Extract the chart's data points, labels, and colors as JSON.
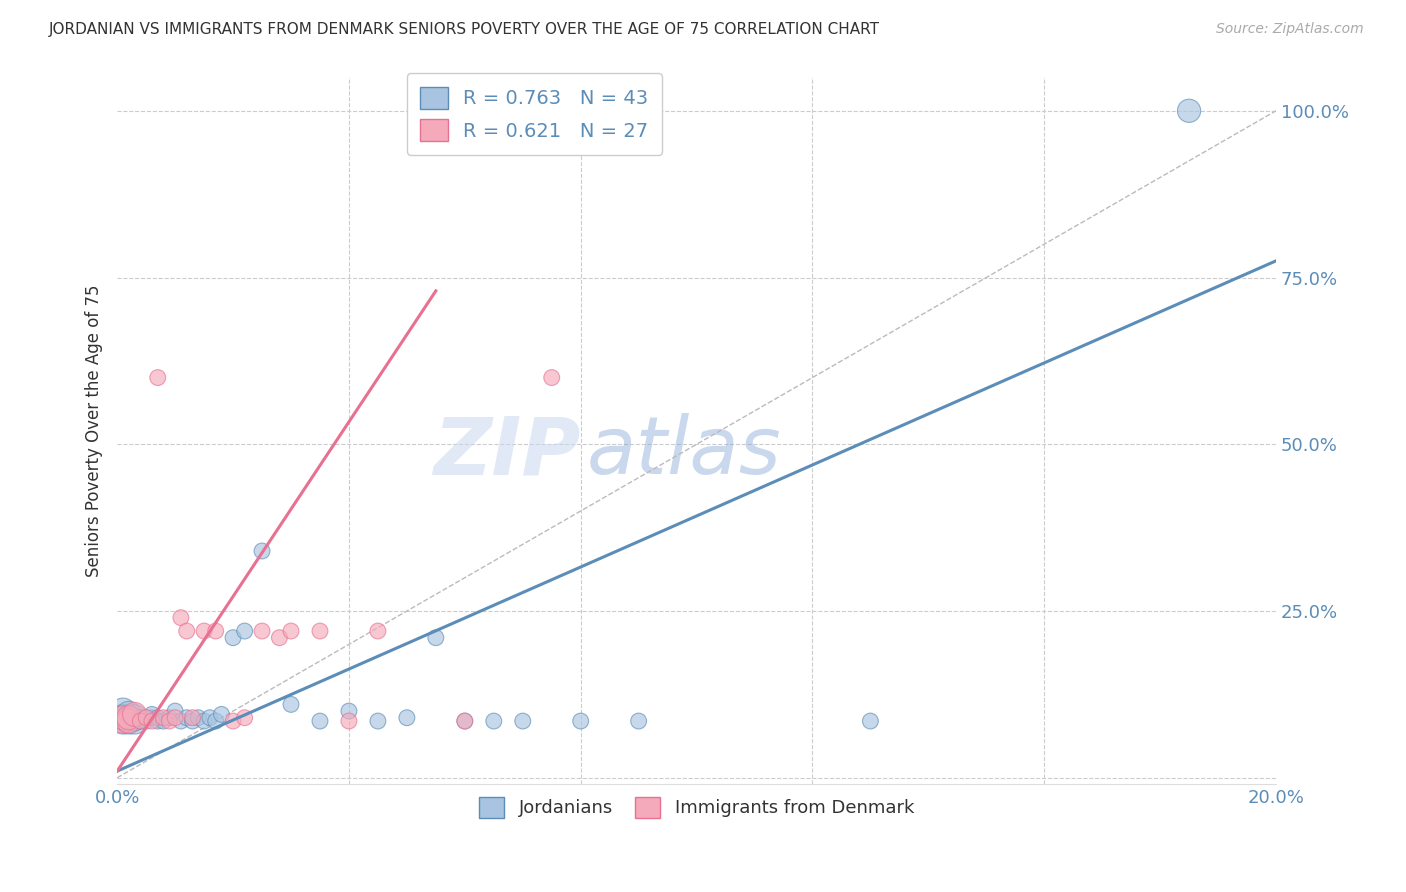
{
  "title": "JORDANIAN VS IMMIGRANTS FROM DENMARK SENIORS POVERTY OVER THE AGE OF 75 CORRELATION CHART",
  "source": "Source: ZipAtlas.com",
  "ylabel": "Seniors Poverty Over the Age of 75",
  "xlim": [
    0.0,
    0.2
  ],
  "ylim": [
    -0.01,
    1.05
  ],
  "xticks": [
    0.0,
    0.04,
    0.08,
    0.12,
    0.16,
    0.2
  ],
  "xticklabels": [
    "0.0%",
    "",
    "",
    "",
    "",
    "20.0%"
  ],
  "yticks": [
    0.0,
    0.25,
    0.5,
    0.75,
    1.0
  ],
  "yticklabels": [
    "",
    "25.0%",
    "50.0%",
    "75.0%",
    "100.0%"
  ],
  "blue_color": "#5B8DB8",
  "blue_fill": "#A8C4E0",
  "pink_color": "#E87090",
  "pink_fill": "#F4AABB",
  "legend_label_blue": "Jordanians",
  "legend_label_pink": "Immigrants from Denmark",
  "axis_color": "#5B8DB8",
  "watermark_zip": "ZIP",
  "watermark_atlas": "atlas",
  "blue_scatter_x": [
    0.001,
    0.001,
    0.001,
    0.002,
    0.002,
    0.002,
    0.003,
    0.003,
    0.004,
    0.004,
    0.005,
    0.005,
    0.006,
    0.006,
    0.007,
    0.007,
    0.008,
    0.009,
    0.01,
    0.011,
    0.012,
    0.013,
    0.014,
    0.015,
    0.016,
    0.017,
    0.018,
    0.02,
    0.022,
    0.025,
    0.03,
    0.035,
    0.04,
    0.045,
    0.05,
    0.055,
    0.06,
    0.065,
    0.07,
    0.08,
    0.09,
    0.13,
    0.185
  ],
  "blue_scatter_y": [
    0.1,
    0.085,
    0.09,
    0.085,
    0.09,
    0.095,
    0.085,
    0.09,
    0.085,
    0.09,
    0.09,
    0.085,
    0.09,
    0.095,
    0.085,
    0.09,
    0.085,
    0.09,
    0.1,
    0.085,
    0.09,
    0.085,
    0.09,
    0.085,
    0.09,
    0.085,
    0.095,
    0.21,
    0.22,
    0.34,
    0.11,
    0.085,
    0.1,
    0.085,
    0.09,
    0.21,
    0.085,
    0.085,
    0.085,
    0.085,
    0.085,
    0.085,
    1.0
  ],
  "pink_scatter_x": [
    0.001,
    0.001,
    0.002,
    0.002,
    0.003,
    0.004,
    0.005,
    0.006,
    0.007,
    0.008,
    0.009,
    0.01,
    0.011,
    0.012,
    0.013,
    0.015,
    0.017,
    0.02,
    0.022,
    0.025,
    0.028,
    0.03,
    0.035,
    0.04,
    0.045,
    0.06,
    0.075
  ],
  "pink_scatter_y": [
    0.085,
    0.09,
    0.085,
    0.09,
    0.095,
    0.085,
    0.09,
    0.085,
    0.6,
    0.09,
    0.085,
    0.09,
    0.24,
    0.22,
    0.09,
    0.22,
    0.22,
    0.085,
    0.09,
    0.22,
    0.21,
    0.22,
    0.22,
    0.085,
    0.22,
    0.085,
    0.6
  ],
  "blue_line_x": [
    0.0,
    0.2
  ],
  "blue_line_y": [
    0.01,
    0.775
  ],
  "pink_line_x": [
    0.0,
    0.055
  ],
  "pink_line_y": [
    0.01,
    0.73
  ],
  "diag_line_x": [
    0.0,
    0.2
  ],
  "diag_line_y": [
    0.0,
    1.0
  ]
}
